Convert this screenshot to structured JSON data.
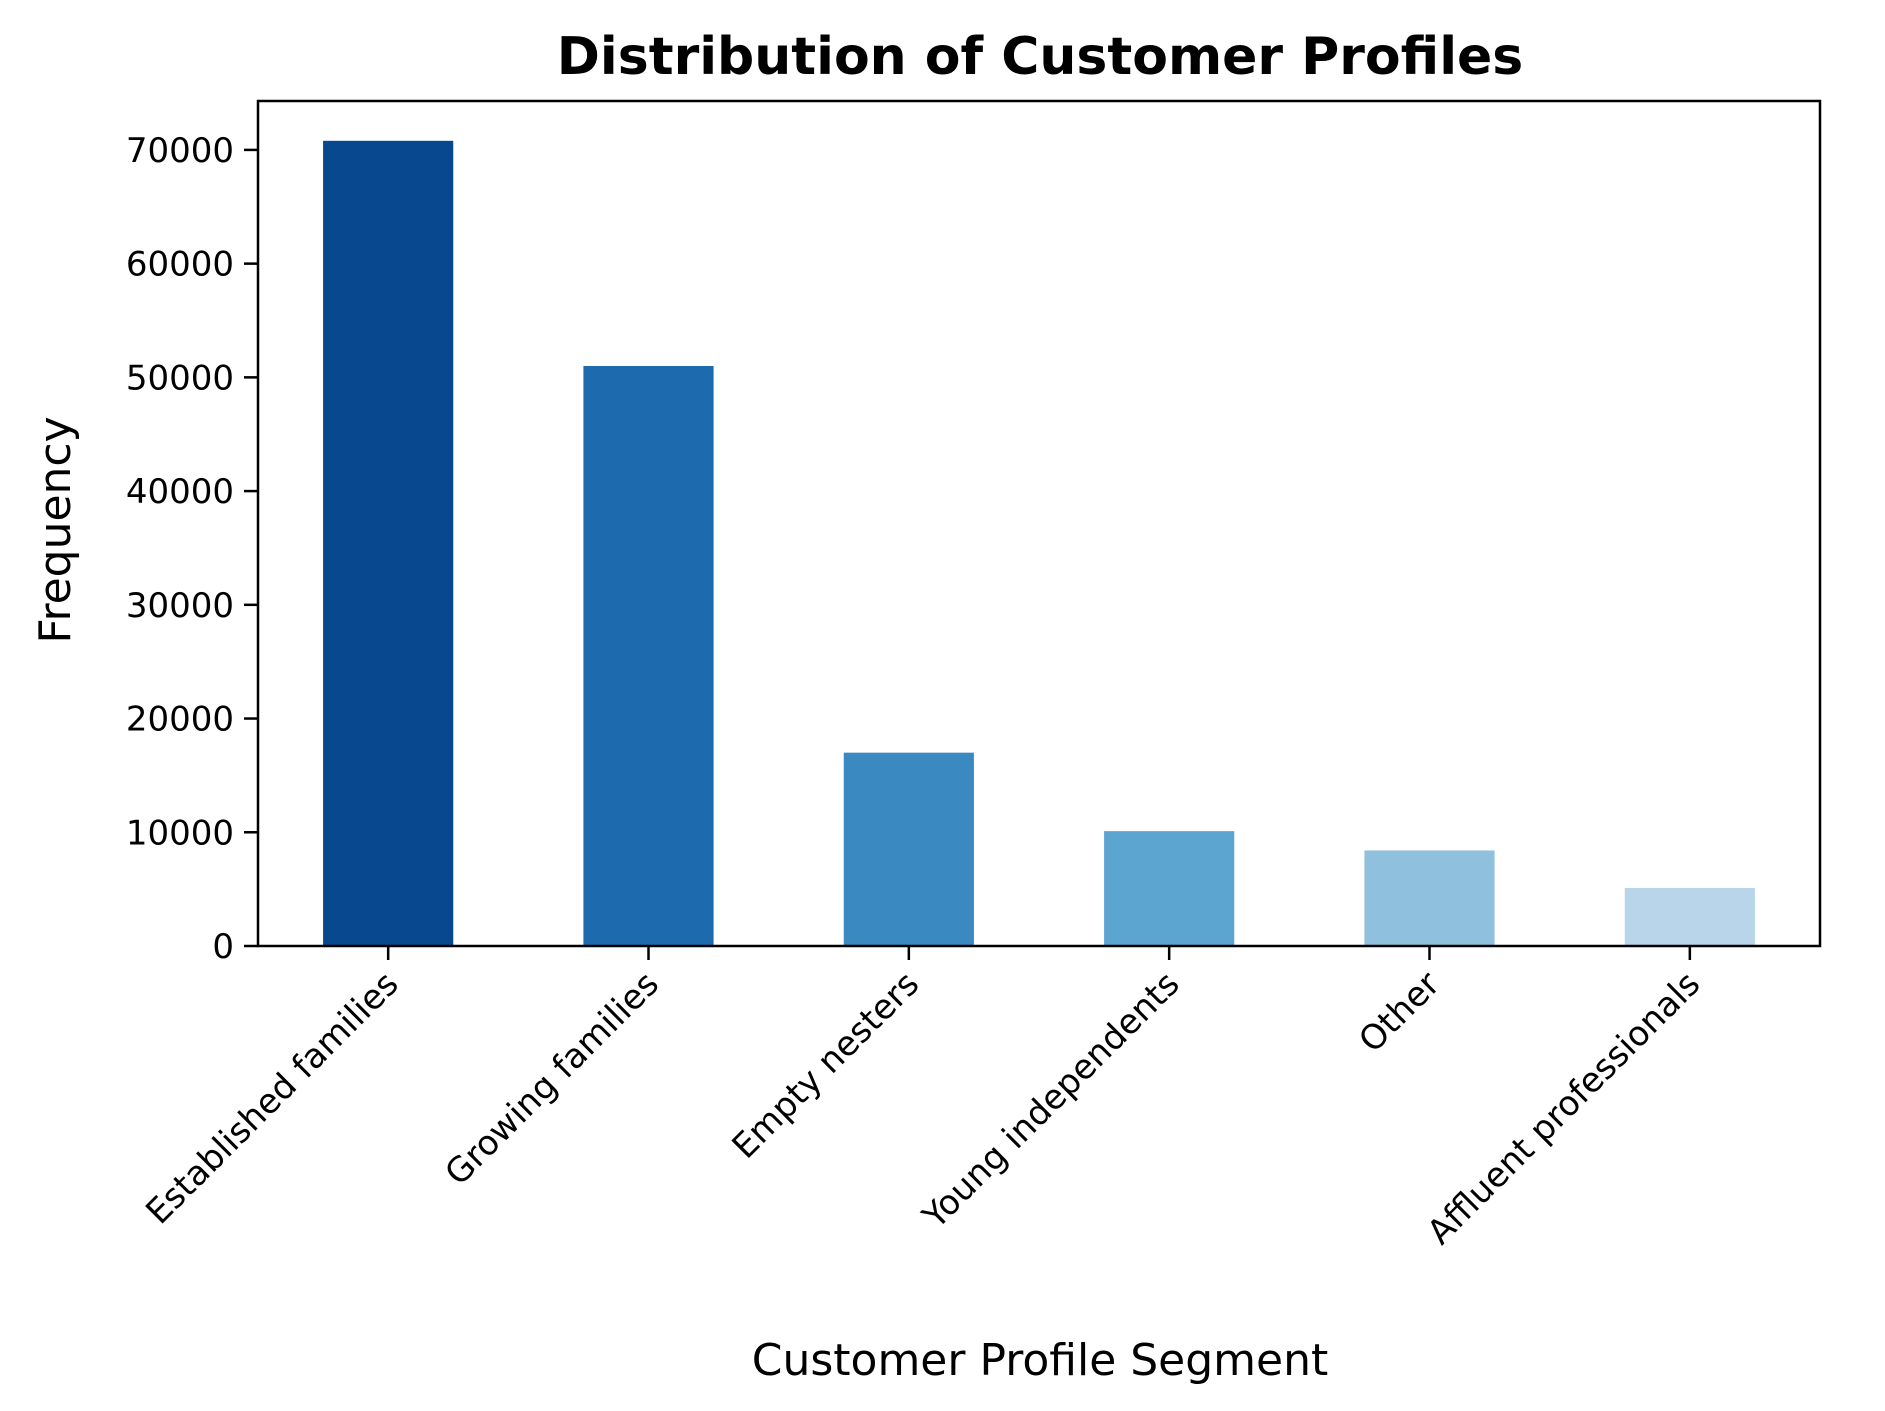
{
  "chart_data": {
    "type": "bar",
    "title": "Distribution of Customer Profiles",
    "xlabel": "Customer Profile Segment",
    "ylabel": "Frequency",
    "categories": [
      "Established families",
      "Growing families",
      "Empty nesters",
      "Young independents",
      "Other",
      "Affluent professionals"
    ],
    "values": [
      70800,
      51000,
      17000,
      10100,
      8400,
      5100
    ],
    "colors": [
      "#08488e",
      "#1d6aaf",
      "#3a89c0",
      "#5ca5d1",
      "#8fc0dd",
      "#b8d5ea"
    ],
    "ylim": [
      0,
      74300
    ],
    "yticks": [
      0,
      10000,
      20000,
      30000,
      40000,
      50000,
      60000,
      70000
    ],
    "grid": false,
    "legend": "none"
  }
}
